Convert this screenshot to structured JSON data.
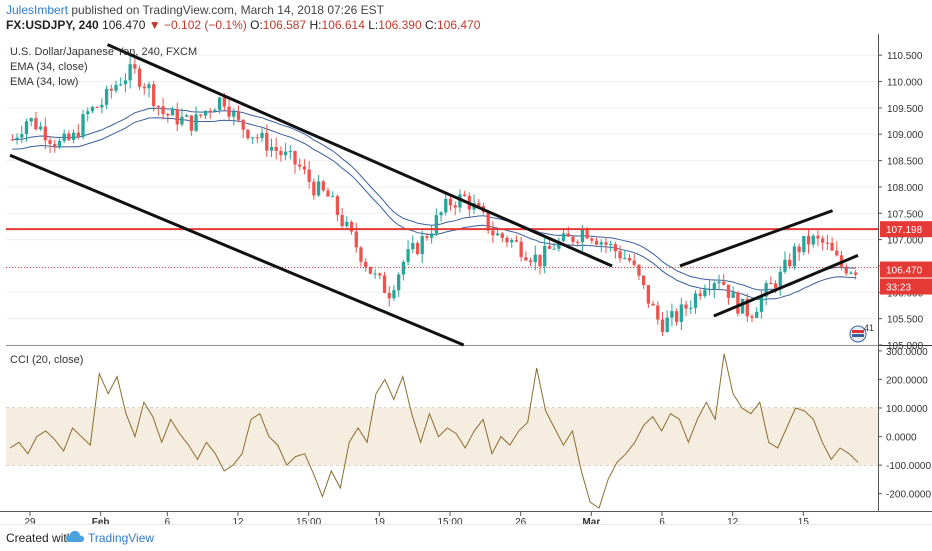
{
  "header": {
    "author": "JulesImbert",
    "published": "published on TradingView.com, March 14, 2018 07:26 EST",
    "symbol": "FX:USDJPY, 240",
    "last": "106.470",
    "change_arrow": "▼",
    "change": "−0.102 (−0.1%)",
    "o_label": "O:",
    "o": "106.587",
    "h_label": "H:",
    "h": "106.614",
    "l_label": "L:",
    "l": "106.390",
    "c_label": "C:",
    "c": "106.470"
  },
  "legend": {
    "title": "U.S. Dollar/Japanese Yen, 240, FXCM",
    "ema1": "EMA (34, close)",
    "ema2": "EMA (34, low)",
    "cci": "CCI (20, close)"
  },
  "badges": {
    "price_level": "107.198",
    "last_price": "106.470",
    "countdown": "33:23",
    "events_count": "41"
  },
  "colors": {
    "up": "#26a69a",
    "down": "#ef5350",
    "ema": "#3a5f9e",
    "resistance": "#e53935",
    "trendline": "#111111",
    "cci": "#8b6d2f",
    "cci_band": "#f6ede1",
    "grid": "#f0f0f0"
  },
  "footer": {
    "created": "Created with",
    "brand": "TradingView",
    "logo_icon": "cloud-logo-icon"
  },
  "chart_data": [
    {
      "type": "candlestick",
      "title": "U.S. Dollar/Japanese Yen, 240, FXCM",
      "ylim": [
        105.0,
        110.75
      ],
      "y_ticks": [
        "110.500",
        "110.000",
        "109.500",
        "109.000",
        "108.500",
        "108.000",
        "107.500",
        "107.000",
        "106.500",
        "106.000",
        "105.500",
        "105.000"
      ],
      "x_ticks": [
        "29",
        "Feb",
        "6",
        "12",
        "15:00",
        "19",
        "15:00",
        "26",
        "Mar",
        "6",
        "12",
        "15"
      ],
      "series": [
        {
          "name": "EMA (34, close)"
        },
        {
          "name": "EMA (34, low)"
        }
      ],
      "close_path": [
        108.9,
        109.3,
        109.1,
        108.8,
        108.9,
        109.4,
        109.6,
        110.0,
        110.2,
        109.9,
        109.4,
        109.3,
        109.2,
        109.5,
        109.7,
        109.2,
        109.0,
        108.8,
        108.6,
        108.4,
        108.0,
        107.8,
        107.3,
        106.8,
        106.3,
        106.0,
        106.6,
        106.9,
        107.3,
        107.7,
        107.8,
        107.5,
        107.1,
        107.0,
        106.8,
        106.6,
        106.9,
        107.0,
        107.2,
        107.0,
        106.8,
        106.6,
        106.0,
        105.4,
        105.5,
        105.8,
        106.2,
        106.3,
        105.8,
        105.6,
        106.0,
        106.3,
        106.8,
        107.0,
        106.9,
        106.5,
        106.45
      ],
      "resistance_level": 107.198,
      "last_price": 106.47
    },
    {
      "type": "line",
      "title": "CCI (20, close)",
      "ylim": [
        -250,
        310
      ],
      "y_ticks": [
        "300.0000",
        "200.0000",
        "100.0000",
        "0.0000",
        "-100.0000",
        "-200.0000"
      ],
      "band": [
        -100,
        100
      ],
      "series": [
        {
          "name": "CCI (20, close)",
          "values": [
            -40,
            -20,
            -60,
            0,
            20,
            -10,
            -50,
            30,
            0,
            -30,
            220,
            150,
            210,
            80,
            0,
            120,
            70,
            -20,
            60,
            10,
            -30,
            -80,
            -20,
            -60,
            -120,
            -100,
            -60,
            60,
            80,
            0,
            -30,
            -100,
            -70,
            -60,
            -130,
            -210,
            -120,
            -180,
            -20,
            30,
            -20,
            150,
            200,
            130,
            210,
            80,
            -20,
            80,
            0,
            30,
            10,
            -40,
            20,
            60,
            -60,
            0,
            -30,
            20,
            50,
            240,
            90,
            30,
            -30,
            20,
            -120,
            -230,
            -250,
            -150,
            -90,
            -60,
            -20,
            40,
            70,
            20,
            80,
            60,
            -20,
            60,
            120,
            60,
            290,
            150,
            100,
            80,
            120,
            -20,
            -40,
            30,
            100,
            90,
            60,
            -20,
            -80,
            -40,
            -60,
            -90
          ]
        }
      ]
    }
  ]
}
